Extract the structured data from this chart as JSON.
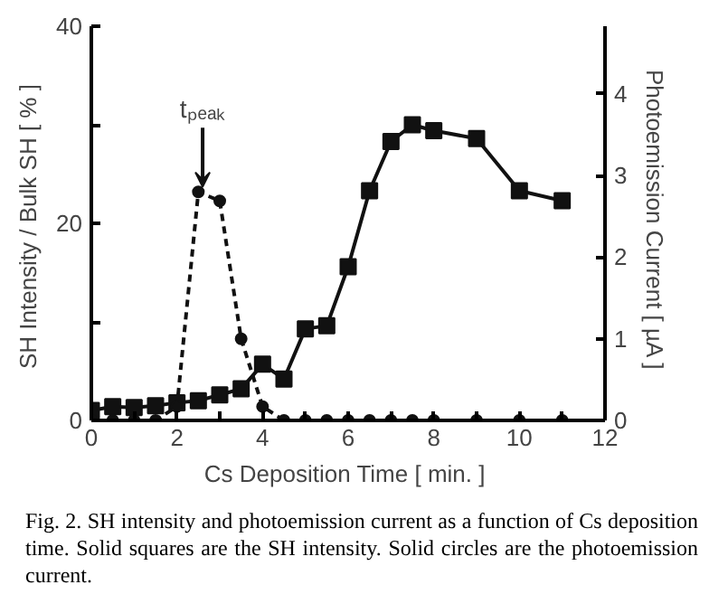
{
  "chart_data": {
    "type": "line",
    "xlabel": "Cs Deposition Time  [ min. ]",
    "ylabel": "SH Intensity / Bulk SH  [ % ]",
    "y2label": "Photoemission Current  [ µA ]",
    "xlim": [
      0,
      12
    ],
    "xticks": [
      0,
      {
        "value": 1,
        "label": null
      },
      2,
      {
        "value": 3,
        "label": null
      },
      4,
      {
        "value": 5,
        "label": null
      },
      6,
      {
        "value": 7,
        "label": null
      },
      8,
      {
        "value": 9,
        "label": null
      },
      10,
      {
        "value": 11,
        "label": null
      },
      12
    ],
    "ylim": [
      0,
      40
    ],
    "yticks": [
      0,
      {
        "value": 10,
        "label": null
      },
      20,
      {
        "value": 30,
        "label": null
      },
      40
    ],
    "y2lim": [
      0,
      4.83
    ],
    "y2ticks": [
      0,
      1,
      2,
      3,
      4
    ],
    "grid": false,
    "series": [
      {
        "color": "#111111",
        "marker": "square",
        "line_style": "solid",
        "x": [
          0,
          0.5,
          1,
          1.5,
          2,
          2.5,
          3,
          3.5,
          4,
          4.5,
          5,
          5.5,
          6,
          6.5,
          7,
          7.5,
          8,
          9,
          10,
          11
        ],
        "values": [
          1.0,
          1.4,
          1.3,
          1.5,
          1.8,
          2.0,
          2.6,
          3.2,
          5.7,
          4.2,
          9.3,
          9.6,
          15.6,
          23.3,
          28.3,
          30.0,
          29.4,
          28.6,
          23.3,
          22.3
        ]
      },
      {
        "color": "#111111",
        "marker": "circle",
        "line_style": "dashed",
        "axis": "y2",
        "x": [
          0,
          0.5,
          1,
          1.5,
          2,
          2.5,
          3,
          3.5,
          4,
          4.5,
          5,
          5.5,
          6,
          6.5,
          7,
          7.5,
          8,
          9,
          10,
          11
        ],
        "values": [
          0,
          0,
          0,
          0,
          0.17,
          2.8,
          2.69,
          1.0,
          0.17,
          0,
          0,
          0,
          0,
          0,
          0,
          0,
          0,
          0,
          0,
          0
        ]
      }
    ],
    "annotations": [
      {
        "text": "tₚₑₐₖ",
        "x": 2.6,
        "y": 23.2
      },
      "Fig. 2. SH intensity and photoemission current as a function of Cs deposition time. Solid squares are the SH intensity. Solid circles are the photoemission current."
    ]
  }
}
